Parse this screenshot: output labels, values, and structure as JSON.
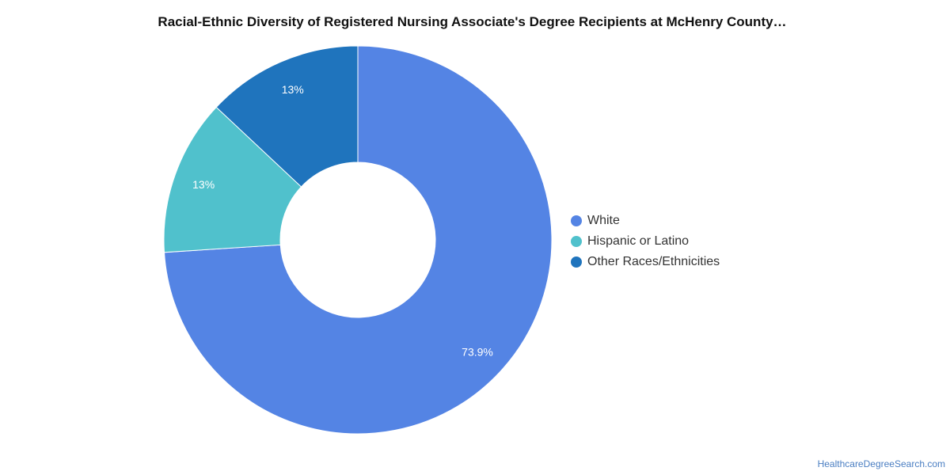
{
  "chart_data": {
    "type": "pie",
    "title": "Racial-Ethnic Diversity of Registered Nursing Associate's Degree Recipients at McHenry County…",
    "donut": true,
    "legend_position": "right",
    "categories": [
      "White",
      "Hispanic or Latino",
      "Other Races/Ethnicities"
    ],
    "values": [
      73.9,
      13,
      13
    ],
    "value_labels": [
      "73.9%",
      "13%",
      "13%"
    ],
    "colors": [
      "#5484e4",
      "#50c1cc",
      "#1f74bd"
    ]
  },
  "footer": {
    "source": "HealthcareDegreeSearch.com"
  }
}
